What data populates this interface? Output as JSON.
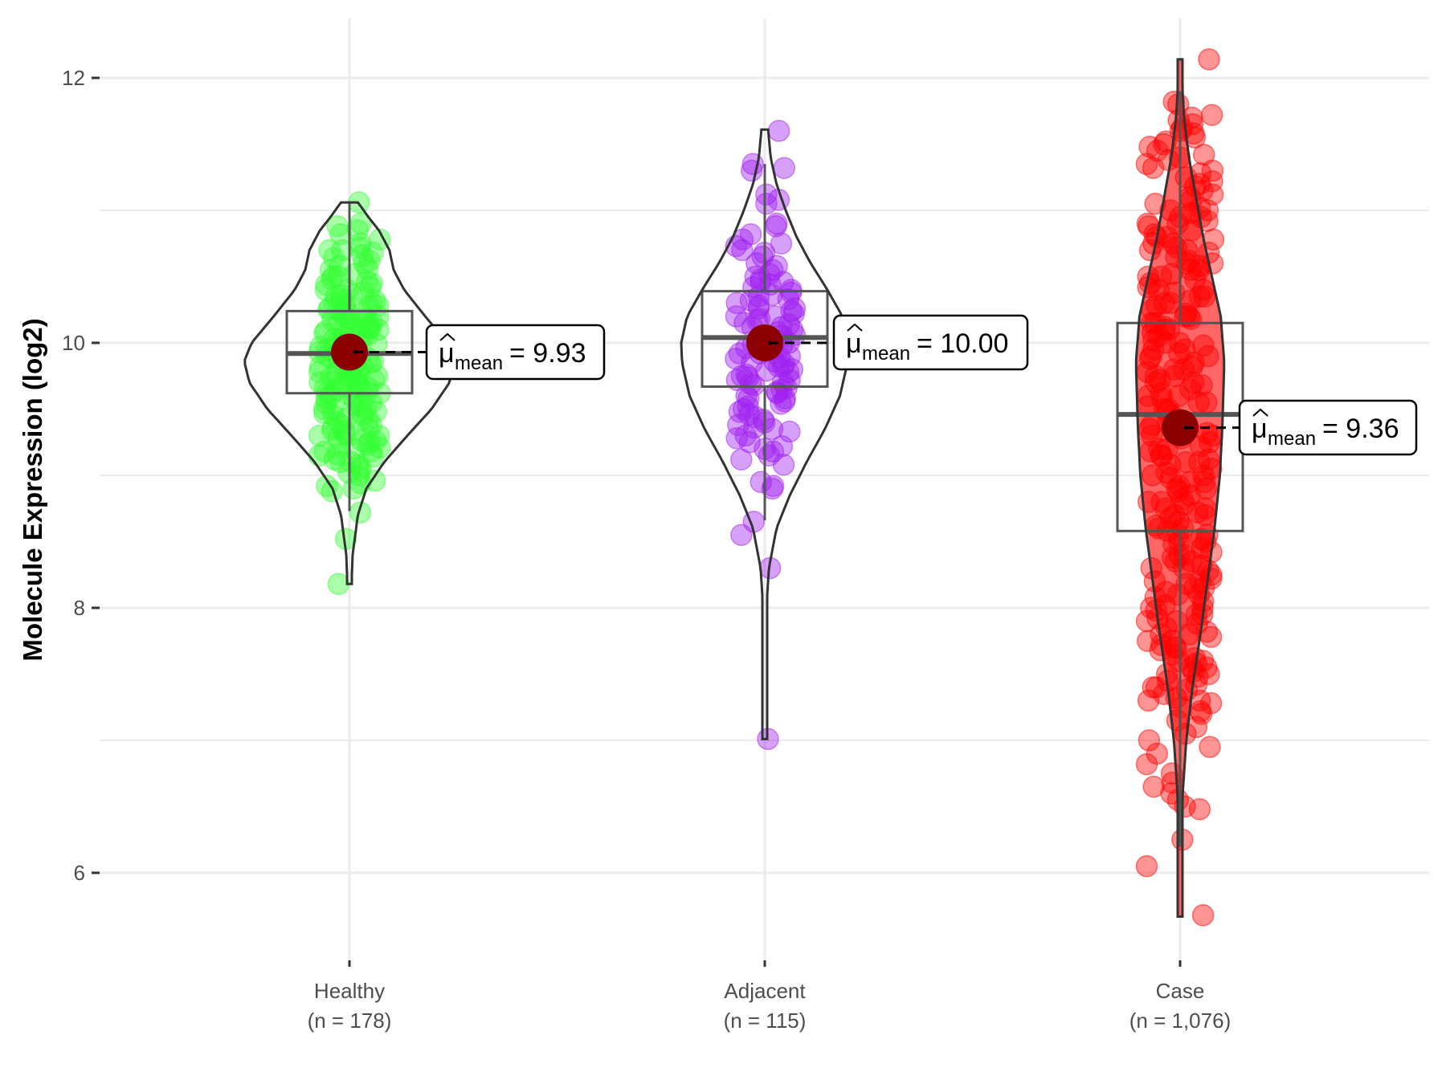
{
  "chart_data": {
    "type": "violin-box-scatter",
    "title": "",
    "xlabel": "",
    "ylabel": "Molecule Expression (log2)",
    "ylim": [
      5.3,
      12.45
    ],
    "y_ticks": [
      6,
      8,
      10,
      12
    ],
    "y_tick_labels": [
      "6",
      "8",
      "10",
      "12"
    ],
    "grid": true,
    "legend": "none",
    "colors": {
      "mean_point": "#8B0000",
      "box_line": "#555555",
      "violin_line": "#333333",
      "grid": "#EBEBEB",
      "annotation_border": "#000000"
    },
    "groups": [
      {
        "name": "Healthy",
        "n_label": "(n = 178)",
        "color": "#33FF33",
        "stroke": "#22DD22",
        "mean": 9.93,
        "annotation_symbol": "μ",
        "annotation_sub": "mean",
        "annotation_eq": "= 9.93",
        "median": 9.92,
        "q1": 9.62,
        "q3": 10.24,
        "whisker_low": 8.73,
        "whisker_high": 11.06,
        "violin_min": 8.18,
        "violin_max": 11.06,
        "violin_profile": [
          [
            8.18,
            0.02
          ],
          [
            8.4,
            0.03
          ],
          [
            8.7,
            0.08
          ],
          [
            8.9,
            0.16
          ],
          [
            9.1,
            0.33
          ],
          [
            9.3,
            0.55
          ],
          [
            9.5,
            0.78
          ],
          [
            9.7,
            0.95
          ],
          [
            9.86,
            1.0
          ],
          [
            10.0,
            0.93
          ],
          [
            10.2,
            0.72
          ],
          [
            10.4,
            0.52
          ],
          [
            10.55,
            0.42
          ],
          [
            10.7,
            0.38
          ],
          [
            10.85,
            0.28
          ],
          [
            10.95,
            0.18
          ],
          [
            11.06,
            0.08
          ]
        ],
        "points": [
          11.06,
          10.88,
          10.85,
          10.78,
          10.75,
          10.72,
          10.7,
          10.68,
          10.66,
          10.62,
          10.6,
          10.58,
          10.56,
          10.55,
          10.52,
          10.5,
          10.48,
          10.46,
          10.45,
          10.42,
          10.4,
          10.4,
          10.38,
          10.36,
          10.35,
          10.33,
          10.32,
          10.3,
          10.3,
          10.28,
          10.27,
          10.26,
          10.25,
          10.24,
          10.22,
          10.21,
          10.2,
          10.19,
          10.18,
          10.17,
          10.16,
          10.15,
          10.14,
          10.13,
          10.12,
          10.11,
          10.1,
          10.09,
          10.08,
          10.07,
          10.06,
          10.05,
          10.04,
          10.03,
          10.02,
          10.01,
          10.0,
          9.99,
          9.98,
          9.97,
          9.96,
          9.95,
          9.94,
          9.93,
          9.92,
          9.91,
          9.9,
          9.89,
          9.88,
          9.87,
          9.86,
          9.85,
          9.84,
          9.83,
          9.82,
          9.81,
          9.8,
          9.79,
          9.78,
          9.77,
          9.76,
          9.75,
          9.74,
          9.73,
          9.72,
          9.71,
          9.7,
          9.69,
          9.68,
          9.67,
          9.66,
          9.65,
          9.64,
          9.63,
          9.62,
          9.61,
          9.6,
          9.58,
          9.56,
          9.55,
          9.53,
          9.52,
          9.5,
          9.48,
          9.47,
          9.45,
          9.43,
          9.42,
          9.4,
          9.38,
          9.36,
          9.35,
          9.33,
          9.31,
          9.3,
          9.28,
          9.26,
          9.25,
          9.23,
          9.21,
          9.2,
          9.18,
          9.16,
          9.15,
          9.12,
          9.1,
          9.08,
          9.06,
          9.04,
          9.02,
          9.0,
          8.96,
          8.94,
          8.92,
          8.9,
          8.88,
          8.72,
          8.52,
          8.18,
          10.9,
          10.82,
          10.7,
          10.64,
          10.5,
          10.44,
          10.36,
          10.28,
          10.22,
          10.18,
          10.12,
          10.06,
          10.02,
          9.98,
          9.94,
          9.9,
          9.86,
          9.82,
          9.78,
          9.74,
          9.7,
          9.66,
          9.62,
          9.58,
          9.54,
          9.5,
          9.46,
          9.42,
          9.38,
          9.34,
          9.3,
          9.26,
          9.22,
          9.18,
          9.14,
          9.1,
          9.3,
          9.5,
          9.7,
          9.9,
          10.1,
          10.3
        ]
      },
      {
        "name": "Adjacent",
        "n_label": "(n = 115)",
        "color": "#A020F0",
        "stroke": "#9A30E0",
        "mean": 10.0,
        "annotation_symbol": "μ",
        "annotation_sub": "mean",
        "annotation_eq": "= 10.00",
        "median": 10.04,
        "q1": 9.67,
        "q3": 10.39,
        "whisker_low": 8.66,
        "whisker_high": 11.35,
        "violin_min": 7.01,
        "violin_max": 11.61,
        "violin_profile": [
          [
            7.01,
            0.02
          ],
          [
            7.5,
            0.02
          ],
          [
            8.0,
            0.02
          ],
          [
            8.3,
            0.05
          ],
          [
            8.6,
            0.14
          ],
          [
            8.85,
            0.3
          ],
          [
            9.1,
            0.5
          ],
          [
            9.35,
            0.72
          ],
          [
            9.6,
            0.9
          ],
          [
            9.85,
            0.99
          ],
          [
            10.0,
            1.0
          ],
          [
            10.2,
            0.93
          ],
          [
            10.4,
            0.75
          ],
          [
            10.6,
            0.55
          ],
          [
            10.8,
            0.38
          ],
          [
            11.0,
            0.25
          ],
          [
            11.2,
            0.14
          ],
          [
            11.4,
            0.07
          ],
          [
            11.61,
            0.04
          ]
        ],
        "points": [
          11.6,
          11.35,
          11.32,
          11.3,
          11.12,
          11.08,
          11.05,
          10.9,
          10.88,
          10.82,
          10.78,
          10.75,
          10.73,
          10.7,
          10.68,
          10.65,
          10.6,
          10.58,
          10.55,
          10.52,
          10.5,
          10.48,
          10.46,
          10.44,
          10.42,
          10.4,
          10.38,
          10.36,
          10.35,
          10.33,
          10.32,
          10.3,
          10.28,
          10.26,
          10.24,
          10.22,
          10.2,
          10.18,
          10.17,
          10.15,
          10.14,
          10.12,
          10.1,
          10.08,
          10.06,
          10.05,
          10.03,
          10.02,
          10.0,
          9.99,
          9.98,
          9.96,
          9.95,
          9.94,
          9.92,
          9.9,
          9.89,
          9.88,
          9.86,
          9.85,
          9.84,
          9.82,
          9.8,
          9.79,
          9.78,
          9.76,
          9.75,
          9.74,
          9.72,
          9.7,
          9.69,
          9.68,
          9.66,
          9.65,
          9.63,
          9.62,
          9.6,
          9.58,
          9.56,
          9.54,
          9.52,
          9.5,
          9.48,
          9.46,
          9.44,
          9.42,
          9.4,
          9.38,
          9.36,
          9.35,
          9.33,
          9.3,
          9.28,
          9.25,
          9.22,
          9.2,
          9.18,
          9.15,
          9.12,
          9.08,
          8.95,
          8.92,
          8.9,
          8.65,
          8.55,
          8.3,
          7.01,
          10.12,
          9.92,
          9.72,
          10.26,
          9.82,
          10.46,
          9.58,
          9.96,
          10.2
        ]
      },
      {
        "name": "Case",
        "n_label": "(n = 1,076)",
        "color": "#FF0000",
        "stroke": "#EE2222",
        "mean": 9.36,
        "annotation_symbol": "μ",
        "annotation_sub": "mean",
        "annotation_eq": "= 9.36",
        "median": 9.46,
        "q1": 8.58,
        "q3": 10.15,
        "whisker_low": 6.2,
        "whisker_high": 11.9,
        "violin_min": 5.67,
        "violin_max": 12.14,
        "violin_profile": [
          [
            5.67,
            0.02
          ],
          [
            6.2,
            0.03
          ],
          [
            6.6,
            0.06
          ],
          [
            7.0,
            0.14
          ],
          [
            7.4,
            0.28
          ],
          [
            7.8,
            0.46
          ],
          [
            8.2,
            0.62
          ],
          [
            8.6,
            0.78
          ],
          [
            9.0,
            0.9
          ],
          [
            9.4,
            0.96
          ],
          [
            9.85,
            1.0
          ],
          [
            10.2,
            0.92
          ],
          [
            10.5,
            0.72
          ],
          [
            10.8,
            0.52
          ],
          [
            11.1,
            0.36
          ],
          [
            11.4,
            0.2
          ],
          [
            11.7,
            0.09
          ],
          [
            12.0,
            0.04
          ],
          [
            12.14,
            0.02
          ]
        ],
        "points": [
          12.14,
          11.82,
          11.8,
          11.72,
          11.7,
          11.68,
          11.65,
          11.62,
          11.6,
          11.58,
          11.55,
          11.52,
          11.5,
          11.48,
          11.45,
          11.42,
          11.4,
          11.38,
          11.35,
          11.32,
          11.3,
          11.28,
          11.25,
          11.22,
          11.2,
          11.18,
          11.15,
          11.12,
          11.1,
          11.08,
          11.05,
          11.02,
          11.0,
          10.98,
          10.95,
          10.92,
          10.9,
          10.88,
          10.85,
          10.82,
          10.8,
          10.78,
          10.75,
          10.72,
          10.7,
          10.68,
          10.65,
          10.62,
          10.6,
          10.58,
          10.55,
          10.52,
          10.5,
          10.48,
          10.45,
          10.42,
          10.4,
          10.38,
          10.35,
          10.32,
          10.3,
          10.28,
          10.25,
          10.22,
          10.2,
          10.18,
          10.15,
          10.12,
          10.1,
          10.08,
          10.05,
          10.02,
          10.0,
          9.98,
          9.95,
          9.92,
          9.9,
          9.88,
          9.85,
          9.82,
          9.8,
          9.78,
          9.75,
          9.72,
          9.7,
          9.68,
          9.65,
          9.62,
          9.6,
          9.58,
          9.55,
          9.52,
          9.5,
          9.48,
          9.45,
          9.42,
          9.4,
          9.38,
          9.35,
          9.32,
          9.3,
          9.28,
          9.25,
          9.22,
          9.2,
          9.18,
          9.15,
          9.12,
          9.1,
          9.08,
          9.05,
          9.02,
          9.0,
          8.98,
          8.95,
          8.92,
          8.9,
          8.88,
          8.85,
          8.82,
          8.8,
          8.78,
          8.75,
          8.72,
          8.7,
          8.68,
          8.65,
          8.62,
          8.6,
          8.58,
          8.55,
          8.52,
          8.5,
          8.48,
          8.45,
          8.42,
          8.4,
          8.38,
          8.35,
          8.32,
          8.3,
          8.28,
          8.25,
          8.22,
          8.2,
          8.18,
          8.15,
          8.12,
          8.1,
          8.08,
          8.05,
          8.02,
          8.0,
          7.98,
          7.95,
          7.92,
          7.9,
          7.88,
          7.85,
          7.82,
          7.8,
          7.78,
          7.75,
          7.72,
          7.7,
          7.68,
          7.65,
          7.62,
          7.6,
          7.58,
          7.55,
          7.52,
          7.5,
          7.48,
          7.45,
          7.42,
          7.4,
          7.38,
          7.35,
          7.32,
          7.3,
          7.28,
          7.25,
          7.22,
          7.2,
          7.15,
          7.1,
          7.05,
          7.0,
          6.95,
          6.9,
          6.82,
          6.75,
          6.68,
          6.65,
          6.6,
          6.55,
          6.5,
          6.48,
          6.25,
          6.05,
          5.68,
          10.9,
          10.7,
          10.5,
          10.3,
          10.1,
          9.9,
          9.7,
          9.5,
          9.3,
          9.1,
          8.9,
          8.7,
          8.5,
          8.3,
          8.1,
          7.9,
          7.7,
          7.5,
          7.3,
          11.0,
          10.8,
          10.6,
          10.4,
          10.2,
          10.0,
          9.8,
          9.6,
          9.4,
          9.2,
          9.0,
          8.8,
          8.6,
          8.4,
          8.2,
          8.0,
          7.8,
          7.6,
          7.4,
          10.95,
          10.75,
          10.55,
          10.35,
          10.15,
          9.95,
          9.75,
          9.55,
          9.35,
          9.15,
          8.95,
          8.75,
          8.55,
          8.35,
          8.15,
          7.95,
          7.75,
          7.55
        ]
      }
    ]
  }
}
